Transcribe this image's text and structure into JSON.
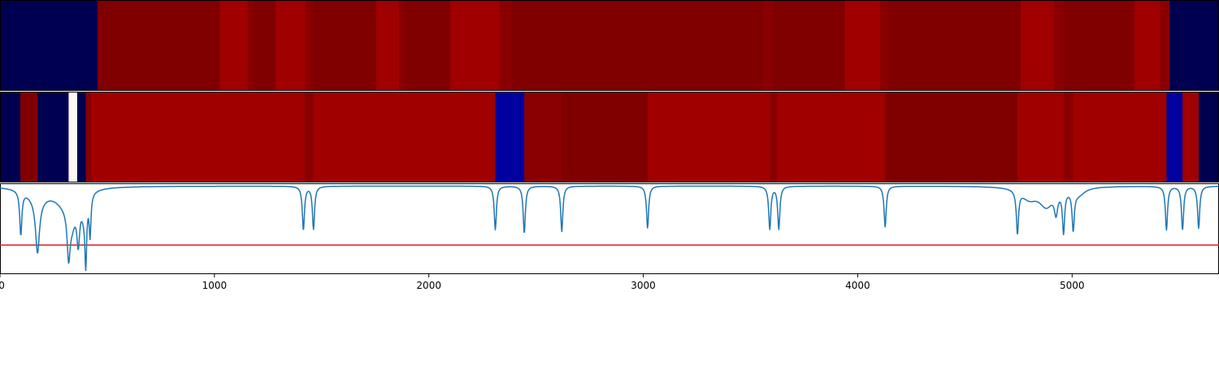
{
  "chart_data": [
    {
      "type": "heatmap",
      "xlim": [
        0,
        5685
      ],
      "colors": {
        "d": "#000050",
        "m": "#800000",
        "r": "#a00000",
        "r2": "#8a0000",
        "b": "#0000a0",
        "w": "#fff5f8"
      },
      "segments": [
        [
          0,
          455,
          "d"
        ],
        [
          455,
          1025,
          "m"
        ],
        [
          1025,
          1155,
          "r"
        ],
        [
          1155,
          1180,
          "r2"
        ],
        [
          1180,
          1285,
          "m"
        ],
        [
          1285,
          1425,
          "r"
        ],
        [
          1425,
          1460,
          "r2"
        ],
        [
          1460,
          1755,
          "m"
        ],
        [
          1755,
          1860,
          "r"
        ],
        [
          1860,
          1885,
          "r2"
        ],
        [
          1885,
          2100,
          "m"
        ],
        [
          2100,
          2330,
          "r"
        ],
        [
          2330,
          2385,
          "r2"
        ],
        [
          2385,
          3560,
          "m"
        ],
        [
          3560,
          3605,
          "r2"
        ],
        [
          3605,
          3940,
          "m"
        ],
        [
          3940,
          4105,
          "r"
        ],
        [
          4105,
          4140,
          "r2"
        ],
        [
          4140,
          4760,
          "m"
        ],
        [
          4760,
          4915,
          "r"
        ],
        [
          4915,
          4960,
          "r2"
        ],
        [
          4960,
          5290,
          "m"
        ],
        [
          5290,
          5410,
          "r"
        ],
        [
          5410,
          5455,
          "r2"
        ],
        [
          5455,
          5685,
          "d"
        ]
      ]
    },
    {
      "type": "heatmap",
      "xlim": [
        0,
        5685
      ],
      "segments": [
        [
          0,
          95,
          "d"
        ],
        [
          95,
          175,
          "m"
        ],
        [
          175,
          320,
          "d"
        ],
        [
          320,
          360,
          "w"
        ],
        [
          360,
          400,
          "d"
        ],
        [
          400,
          425,
          "r2"
        ],
        [
          425,
          1420,
          "r"
        ],
        [
          1420,
          1460,
          "r2"
        ],
        [
          1460,
          2310,
          "r"
        ],
        [
          2310,
          2445,
          "b"
        ],
        [
          2445,
          2620,
          "r2"
        ],
        [
          2620,
          3020,
          "m"
        ],
        [
          3020,
          3590,
          "r"
        ],
        [
          3590,
          3625,
          "r2"
        ],
        [
          3625,
          4130,
          "r"
        ],
        [
          4130,
          4745,
          "m"
        ],
        [
          4745,
          4960,
          "r"
        ],
        [
          4960,
          5005,
          "r2"
        ],
        [
          5005,
          5440,
          "r"
        ],
        [
          5440,
          5515,
          "b"
        ],
        [
          5515,
          5590,
          "r"
        ],
        [
          5590,
          5685,
          "d"
        ]
      ]
    },
    {
      "type": "line",
      "xlim": [
        0,
        5685
      ],
      "ylim": [
        -1.0,
        0.0
      ],
      "line_color": "#1f77b4",
      "threshold": {
        "y": -0.68,
        "color": "#e41a1c"
      },
      "baseline": -0.03,
      "dips": [
        [
          97,
          -0.48,
          6
        ],
        [
          175,
          -0.58,
          11
        ],
        [
          175,
          -0.12,
          55
        ],
        [
          300,
          -0.15,
          60
        ],
        [
          320,
          -0.48,
          8
        ],
        [
          335,
          -0.28,
          22
        ],
        [
          365,
          -0.45,
          8
        ],
        [
          390,
          -0.18,
          14
        ],
        [
          400,
          -0.68,
          5
        ],
        [
          420,
          -0.45,
          5
        ],
        [
          1415,
          -0.48,
          6
        ],
        [
          1462,
          -0.47,
          6
        ],
        [
          2310,
          -0.48,
          6
        ],
        [
          2445,
          -0.52,
          6
        ],
        [
          2620,
          -0.5,
          6
        ],
        [
          3020,
          -0.46,
          6
        ],
        [
          3590,
          -0.47,
          6
        ],
        [
          3632,
          -0.47,
          6
        ],
        [
          4128,
          -0.45,
          6
        ],
        [
          4745,
          -0.47,
          6
        ],
        [
          4800,
          -0.12,
          45
        ],
        [
          4880,
          -0.2,
          40
        ],
        [
          4925,
          -0.22,
          9
        ],
        [
          4960,
          -0.45,
          6
        ],
        [
          5005,
          -0.42,
          6
        ],
        [
          5030,
          -0.08,
          35
        ],
        [
          5440,
          -0.48,
          6
        ],
        [
          5515,
          -0.48,
          6
        ],
        [
          5590,
          -0.46,
          6
        ]
      ],
      "xticks": [
        0,
        1000,
        2000,
        3000,
        4000,
        5000
      ]
    }
  ]
}
